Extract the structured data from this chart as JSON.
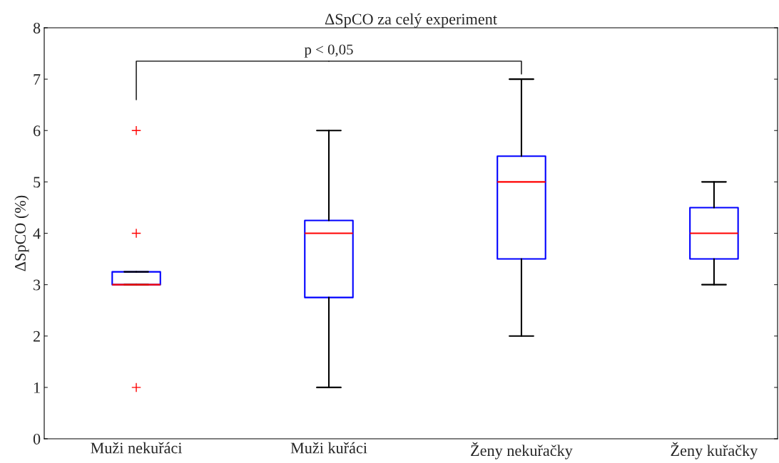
{
  "chart_data": {
    "type": "box",
    "title": "ΔSpCO za celý experiment",
    "ylabel": "ΔSpCO (%)",
    "categories": [
      "Muži nekuřáci",
      "Muži kuřáci",
      "Ženy nekuřačky",
      "Ženy kuřačky"
    ],
    "boxes": [
      {
        "low": 3,
        "q1": 3,
        "median": 3,
        "q3": 3.25,
        "high": 3.25,
        "outliers": [
          1,
          4,
          6
        ]
      },
      {
        "low": 1,
        "q1": 2.75,
        "median": 4,
        "q3": 4.25,
        "high": 6
      },
      {
        "low": 2,
        "q1": 3.5,
        "median": 5,
        "q3": 5.5,
        "high": 7
      },
      {
        "low": 3,
        "q1": 3.5,
        "median": 4,
        "q3": 4.5,
        "high": 5
      }
    ],
    "color": "#0000ff",
    "ylim": [
      0,
      8
    ],
    "yticks": [
      0,
      1,
      2,
      3,
      4,
      5,
      6,
      7,
      8
    ],
    "annotations": [
      "p < 0,05"
    ],
    "grid": false,
    "legend": false
  }
}
